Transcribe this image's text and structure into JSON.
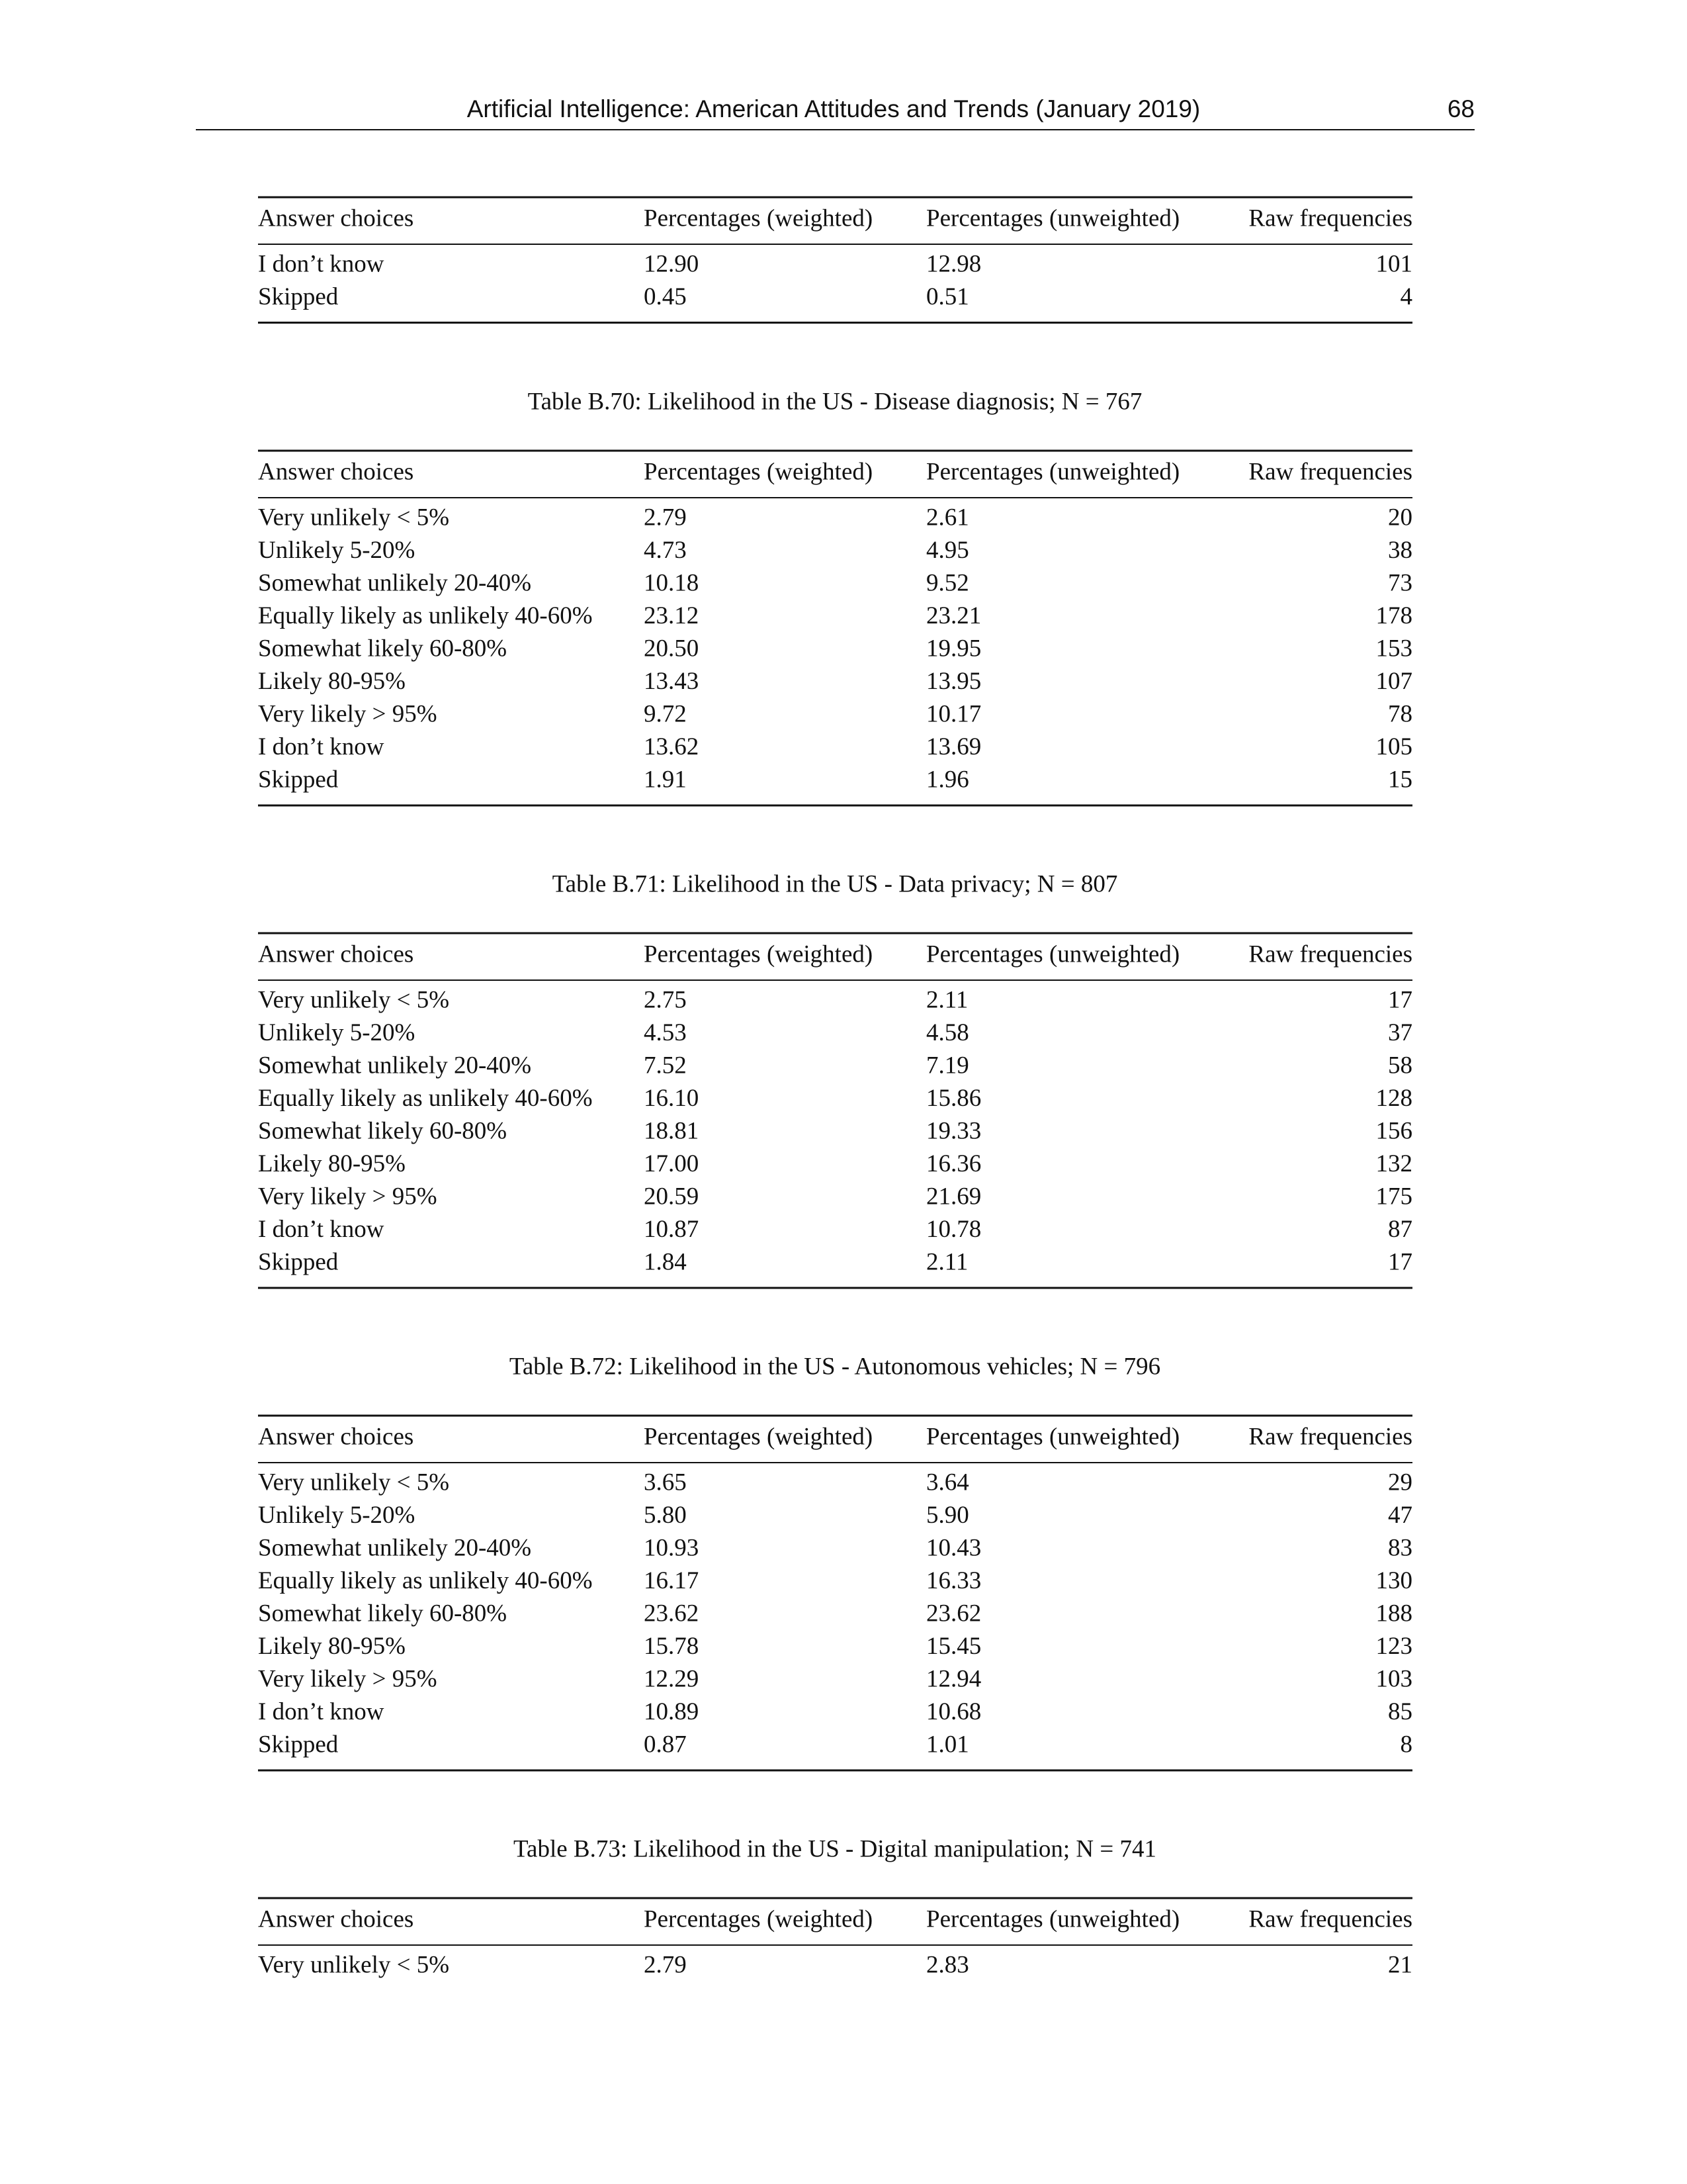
{
  "header": {
    "title": "Artificial Intelligence: American Attitudes and Trends (January 2019)",
    "page_number": "68"
  },
  "tables": [
    {
      "columns": [
        "Answer choices",
        "Percentages (weighted)",
        "Percentages (unweighted)",
        "Raw frequencies"
      ],
      "rows": [
        [
          "I don’t know",
          "12.90",
          "12.98",
          "101"
        ],
        [
          "Skipped",
          "0.45",
          "0.51",
          "4"
        ]
      ]
    },
    {
      "caption": "Table B.70: Likelihood in the US - Disease diagnosis; N = 767",
      "columns": [
        "Answer choices",
        "Percentages (weighted)",
        "Percentages (unweighted)",
        "Raw frequencies"
      ],
      "rows": [
        [
          "Very unlikely < 5%",
          "2.79",
          "2.61",
          "20"
        ],
        [
          "Unlikely 5-20%",
          "4.73",
          "4.95",
          "38"
        ],
        [
          "Somewhat unlikely 20-40%",
          "10.18",
          "9.52",
          "73"
        ],
        [
          "Equally likely as unlikely 40-60%",
          "23.12",
          "23.21",
          "178"
        ],
        [
          "Somewhat likely 60-80%",
          "20.50",
          "19.95",
          "153"
        ],
        [
          "Likely 80-95%",
          "13.43",
          "13.95",
          "107"
        ],
        [
          "Very likely > 95%",
          "9.72",
          "10.17",
          "78"
        ],
        [
          "I don’t know",
          "13.62",
          "13.69",
          "105"
        ],
        [
          "Skipped",
          "1.91",
          "1.96",
          "15"
        ]
      ]
    },
    {
      "caption": "Table B.71: Likelihood in the US - Data privacy; N = 807",
      "columns": [
        "Answer choices",
        "Percentages (weighted)",
        "Percentages (unweighted)",
        "Raw frequencies"
      ],
      "rows": [
        [
          "Very unlikely < 5%",
          "2.75",
          "2.11",
          "17"
        ],
        [
          "Unlikely 5-20%",
          "4.53",
          "4.58",
          "37"
        ],
        [
          "Somewhat unlikely 20-40%",
          "7.52",
          "7.19",
          "58"
        ],
        [
          "Equally likely as unlikely 40-60%",
          "16.10",
          "15.86",
          "128"
        ],
        [
          "Somewhat likely 60-80%",
          "18.81",
          "19.33",
          "156"
        ],
        [
          "Likely 80-95%",
          "17.00",
          "16.36",
          "132"
        ],
        [
          "Very likely > 95%",
          "20.59",
          "21.69",
          "175"
        ],
        [
          "I don’t know",
          "10.87",
          "10.78",
          "87"
        ],
        [
          "Skipped",
          "1.84",
          "2.11",
          "17"
        ]
      ]
    },
    {
      "caption": "Table B.72: Likelihood in the US - Autonomous vehicles; N = 796",
      "columns": [
        "Answer choices",
        "Percentages (weighted)",
        "Percentages (unweighted)",
        "Raw frequencies"
      ],
      "rows": [
        [
          "Very unlikely < 5%",
          "3.65",
          "3.64",
          "29"
        ],
        [
          "Unlikely 5-20%",
          "5.80",
          "5.90",
          "47"
        ],
        [
          "Somewhat unlikely 20-40%",
          "10.93",
          "10.43",
          "83"
        ],
        [
          "Equally likely as unlikely 40-60%",
          "16.17",
          "16.33",
          "130"
        ],
        [
          "Somewhat likely 60-80%",
          "23.62",
          "23.62",
          "188"
        ],
        [
          "Likely 80-95%",
          "15.78",
          "15.45",
          "123"
        ],
        [
          "Very likely > 95%",
          "12.29",
          "12.94",
          "103"
        ],
        [
          "I don’t know",
          "10.89",
          "10.68",
          "85"
        ],
        [
          "Skipped",
          "0.87",
          "1.01",
          "8"
        ]
      ]
    },
    {
      "caption": "Table B.73: Likelihood in the US - Digital manipulation; N = 741",
      "columns": [
        "Answer choices",
        "Percentages (weighted)",
        "Percentages (unweighted)",
        "Raw frequencies"
      ],
      "rows": [
        [
          "Very unlikely < 5%",
          "2.79",
          "2.83",
          "21"
        ]
      ],
      "continues": true
    }
  ]
}
